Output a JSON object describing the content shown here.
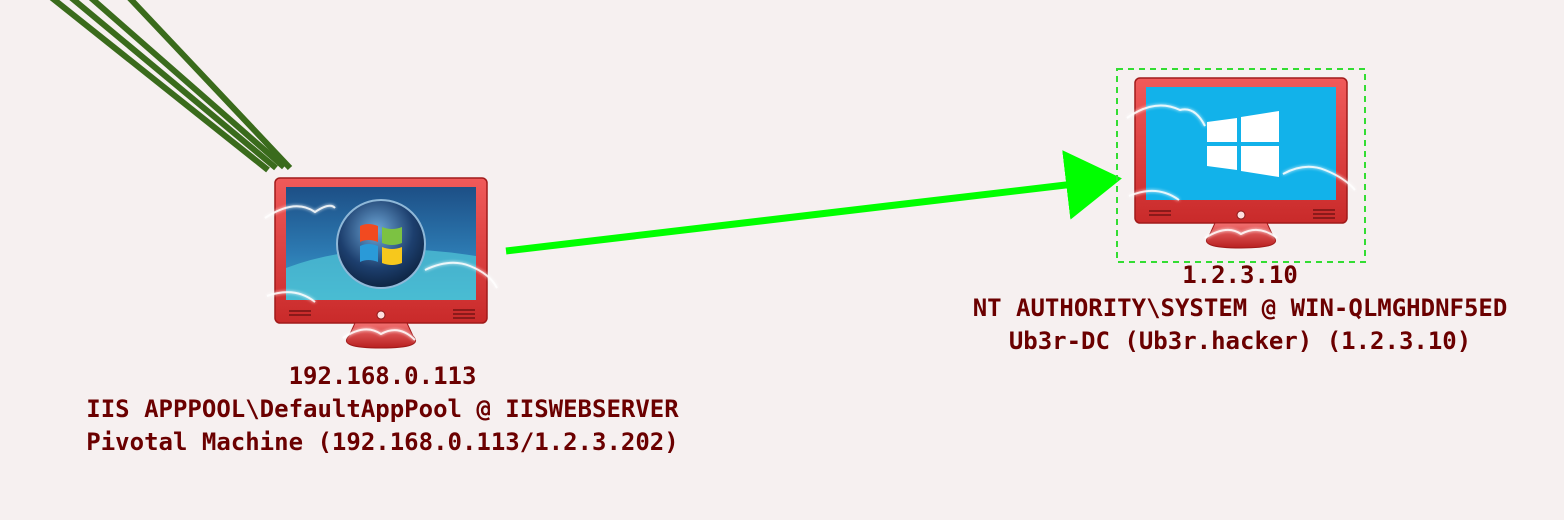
{
  "colors": {
    "background": "#f6f0f0",
    "session_line": "#3a6b1c",
    "pivot_arrow": "#00ff00",
    "selection_box": "#33dd33",
    "monitor_frame": "#e03b3b",
    "label_text": "#6b0000"
  },
  "nodes": [
    {
      "os_icon": "windows-7-icon",
      "ip": "192.168.0.113",
      "user_host": "IIS APPPOOL\\DefaultAppPool @ IISWEBSERVER",
      "description": "Pivotal Machine (192.168.0.113/1.2.3.202)"
    },
    {
      "os_icon": "windows-10-icon",
      "ip": "1.2.3.10",
      "user_host": "NT AUTHORITY\\SYSTEM @ WIN-QLMGHDNF5ED",
      "description": "Ub3r-DC (Ub3r.hacker) (1.2.3.10)",
      "selected": true
    }
  ]
}
